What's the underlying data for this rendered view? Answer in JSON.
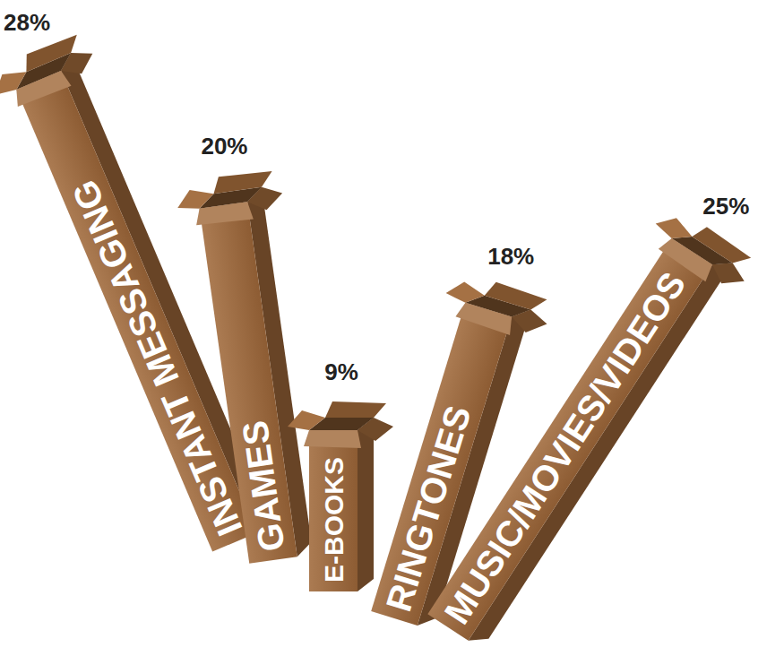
{
  "chart_data": {
    "type": "bar",
    "categories": [
      "INSTANT MESSAGING",
      "GAMES",
      "E-BOOKS",
      "RINGTONES",
      "MUSIC/MOVIES/VIDEOS"
    ],
    "values": [
      28,
      20,
      9,
      18,
      25
    ],
    "value_labels": [
      "28%",
      "20%",
      "9%",
      "18%",
      "25%"
    ],
    "data_labels": true,
    "tick_labels": false,
    "color": "#a0693a"
  }
}
